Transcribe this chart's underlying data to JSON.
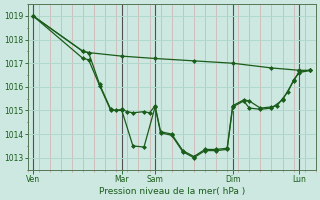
{
  "bg_color": "#cce8e0",
  "grid_color": "#b0d8cc",
  "line_color": "#1a5c1a",
  "marker_color": "#1a5c1a",
  "xlabel": "Pression niveau de la mer( hPa )",
  "ylim": [
    1012.5,
    1019.5
  ],
  "yticks": [
    1013,
    1014,
    1015,
    1016,
    1017,
    1018,
    1019
  ],
  "day_labels": [
    "Ven",
    "Mar",
    "Sam",
    "Dim",
    "Lun"
  ],
  "day_positions": [
    0.5,
    8.5,
    11.5,
    18.5,
    24.5
  ],
  "xlim": [
    0,
    26
  ],
  "series1_x": [
    0.5,
    5,
    5.5,
    8.5,
    11.5,
    15,
    18.5,
    22,
    24.5,
    25.5
  ],
  "series1_y": [
    1019.0,
    1017.5,
    1017.45,
    1017.3,
    1017.2,
    1017.1,
    1017.0,
    1016.8,
    1016.7,
    1016.7
  ],
  "series2_x": [
    0.5,
    5,
    5.5,
    6.5,
    7.5,
    8,
    8.5,
    9,
    9.5,
    10.5,
    11,
    11.5,
    12,
    13,
    14,
    15,
    16,
    17,
    18,
    18.5,
    19.5,
    20,
    21,
    22,
    22.5,
    23,
    23.5,
    24,
    24.5,
    25.5
  ],
  "series2_y": [
    1019.0,
    1017.5,
    1017.45,
    1016.1,
    1015.05,
    1015.0,
    1015.05,
    1014.95,
    1014.9,
    1014.95,
    1014.9,
    1015.2,
    1014.1,
    1014.0,
    1013.3,
    1013.05,
    1013.35,
    1013.35,
    1013.4,
    1015.2,
    1015.45,
    1015.4,
    1015.1,
    1015.15,
    1015.2,
    1015.5,
    1015.8,
    1016.3,
    1016.6,
    1016.7
  ],
  "series3_x": [
    0.5,
    5,
    5.5,
    6.5,
    7.5,
    8.5,
    9.5,
    10.5,
    11.5,
    12,
    13,
    14,
    15,
    16,
    17,
    18,
    18.5,
    19.5,
    20,
    21,
    22,
    23,
    24,
    24.5,
    25.5
  ],
  "series3_y": [
    1019.0,
    1017.2,
    1017.15,
    1016.05,
    1015.0,
    1015.0,
    1013.5,
    1013.45,
    1015.15,
    1014.05,
    1013.95,
    1013.25,
    1013.0,
    1013.3,
    1013.3,
    1013.35,
    1015.15,
    1015.4,
    1015.1,
    1015.05,
    1015.1,
    1015.45,
    1016.25,
    1016.65,
    1016.7
  ]
}
